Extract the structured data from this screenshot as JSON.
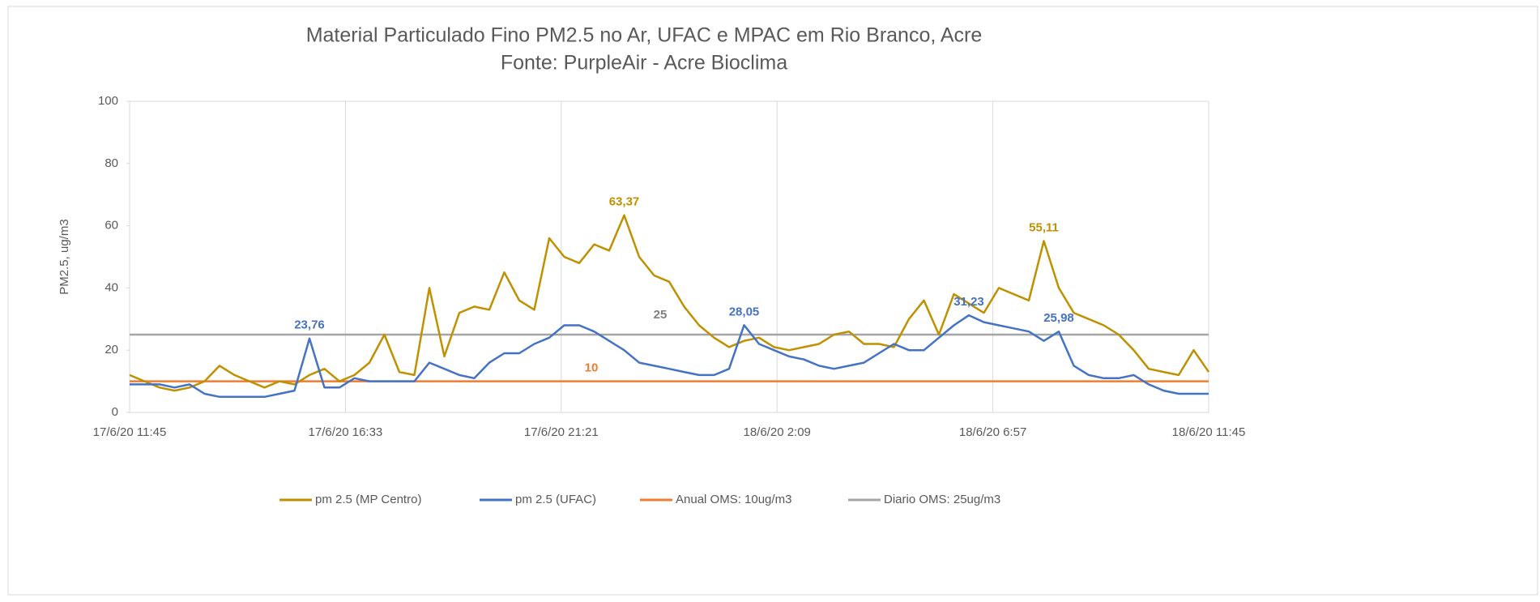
{
  "chart_data": {
    "type": "line",
    "title": "Material Particulado Fino PM2.5 no Ar,  UFAC e  MPAC em Rio Branco, Acre",
    "subtitle": "Fonte: PurpleAir - Acre Bioclima",
    "y_label": "PM2.5, ug/m3",
    "x": [
      "17/6/20 11:45",
      "17/6/20 12:05",
      "17/6/20 12:25",
      "17/6/20 12:45",
      "17/6/20 13:05",
      "17/6/20 13:25",
      "17/6/20 13:45",
      "17/6/20 14:05",
      "17/6/20 14:25",
      "17/6/20 14:45",
      "17/6/20 15:05",
      "17/6/20 15:25",
      "17/6/20 15:45",
      "17/6/20 16:05",
      "17/6/20 16:25",
      "17/6/20 16:45",
      "17/6/20 17:05",
      "17/6/20 17:25",
      "17/6/20 17:45",
      "17/6/20 18:05",
      "17/6/20 18:25",
      "17/6/20 18:45",
      "17/6/20 19:05",
      "17/6/20 19:25",
      "17/6/20 19:45",
      "17/6/20 20:05",
      "17/6/20 20:25",
      "17/6/20 20:45",
      "17/6/20 21:05",
      "17/6/20 21:25",
      "17/6/20 21:45",
      "17/6/20 22:05",
      "17/6/20 22:25",
      "17/6/20 22:45",
      "17/6/20 23:05",
      "17/6/20 23:25",
      "17/6/20 23:45",
      "18/6/20 0:05",
      "18/6/20 0:25",
      "18/6/20 0:45",
      "18/6/20 1:05",
      "18/6/20 1:25",
      "18/6/20 1:45",
      "18/6/20 2:05",
      "18/6/20 2:25",
      "18/6/20 2:45",
      "18/6/20 3:05",
      "18/6/20 3:25",
      "18/6/20 3:45",
      "18/6/20 4:05",
      "18/6/20 4:25",
      "18/6/20 4:45",
      "18/6/20 5:05",
      "18/6/20 5:25",
      "18/6/20 5:45",
      "18/6/20 6:05",
      "18/6/20 6:25",
      "18/6/20 6:45",
      "18/6/20 7:05",
      "18/6/20 7:25",
      "18/6/20 7:45",
      "18/6/20 8:05",
      "18/6/20 8:25",
      "18/6/20 8:45",
      "18/6/20 9:05",
      "18/6/20 9:25",
      "18/6/20 9:45",
      "18/6/20 10:05",
      "18/6/20 10:25",
      "18/6/20 10:45",
      "18/6/20 11:05",
      "18/6/20 11:25",
      "18/6/20 11:45"
    ],
    "series": [
      {
        "name": "pm 2.5 (MP Centro)",
        "color": "#bf9000",
        "values": [
          12,
          10,
          8,
          7,
          8,
          10,
          15,
          12,
          10,
          8,
          10,
          9,
          12,
          14,
          10,
          12,
          16,
          25,
          13,
          12,
          40,
          18,
          32,
          34,
          33,
          45,
          36,
          33,
          56,
          50,
          48,
          54,
          52,
          63.37,
          50,
          44,
          42,
          34,
          28,
          24,
          21,
          23,
          24,
          21,
          20,
          21,
          22,
          25,
          26,
          22,
          22,
          21,
          30,
          36,
          25,
          38,
          35,
          32,
          40,
          38,
          36,
          55.11,
          40,
          32,
          30,
          28,
          25,
          20,
          14,
          13,
          12,
          20,
          13
        ],
        "value_labels": [
          null,
          null,
          null,
          null,
          null,
          null,
          null,
          null,
          null,
          null,
          null,
          null,
          null,
          null,
          null,
          null,
          null,
          null,
          null,
          null,
          null,
          null,
          null,
          null,
          null,
          null,
          null,
          null,
          null,
          null,
          null,
          null,
          null,
          "63,37",
          null,
          null,
          null,
          null,
          null,
          null,
          null,
          null,
          null,
          null,
          null,
          null,
          null,
          null,
          null,
          null,
          null,
          null,
          null,
          null,
          null,
          null,
          null,
          null,
          null,
          null,
          null,
          "55,11",
          null,
          null,
          null,
          null,
          null,
          null,
          null,
          null,
          null,
          null,
          null
        ]
      },
      {
        "name": "pm 2.5 (UFAC)",
        "color": "#4472c4",
        "values": [
          9,
          9,
          9,
          8,
          9,
          6,
          5,
          5,
          5,
          5,
          6,
          7,
          23.76,
          8,
          8,
          11,
          10,
          10,
          10,
          10,
          16,
          14,
          12,
          11,
          16,
          19,
          19,
          22,
          24,
          28,
          28,
          26,
          23,
          20,
          16,
          15,
          14,
          13,
          12,
          12,
          14,
          28.05,
          22,
          20,
          18,
          17,
          15,
          14,
          15,
          16,
          19,
          22,
          20,
          20,
          24,
          28,
          31.23,
          29,
          28,
          27,
          26,
          23,
          25.98,
          15,
          12,
          11,
          11,
          12,
          9,
          7,
          6,
          6,
          6
        ],
        "value_labels": [
          null,
          null,
          null,
          null,
          null,
          null,
          null,
          null,
          null,
          null,
          null,
          null,
          "23,76",
          null,
          null,
          null,
          null,
          null,
          null,
          null,
          null,
          null,
          null,
          null,
          null,
          null,
          null,
          null,
          null,
          null,
          null,
          null,
          null,
          null,
          null,
          null,
          null,
          null,
          null,
          null,
          null,
          "28,05",
          null,
          null,
          null,
          null,
          null,
          null,
          null,
          null,
          null,
          null,
          null,
          null,
          null,
          null,
          "31,23",
          null,
          null,
          null,
          null,
          null,
          "25,98",
          null,
          null,
          null,
          null,
          null,
          null,
          null,
          null,
          null,
          null
        ]
      }
    ],
    "reference_lines": [
      {
        "name": "Anual OMS: 10ug/m3",
        "color": "#ed7d31",
        "value": 10
      },
      {
        "name": "Diario OMS: 25ug/m3",
        "color": "#a5a5a5",
        "value": 25
      }
    ],
    "xlim": [
      "17/6/20 11:45",
      "18/6/20 11:45"
    ],
    "xticks": [
      "17/6/20 11:45",
      "17/6/20 16:33",
      "17/6/20 21:21",
      "18/6/20 2:09",
      "18/6/20 6:57",
      "18/6/20 11:45"
    ],
    "ylim": [
      0,
      100
    ],
    "yticks": [
      0,
      20,
      40,
      60,
      80,
      100
    ],
    "grid": true
  }
}
